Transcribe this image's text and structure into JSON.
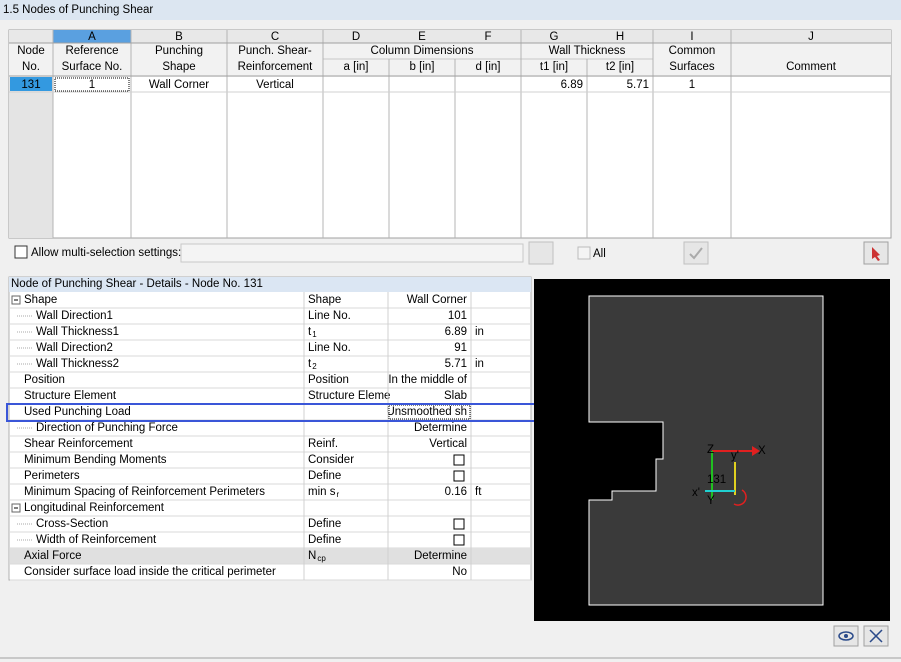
{
  "header": {
    "title": "1.5 Nodes of Punching Shear"
  },
  "table": {
    "columns": [
      {
        "label": [
          "Node",
          "No."
        ]
      },
      {
        "letter": "A",
        "label": [
          "Reference",
          "Surface No."
        ]
      },
      {
        "letter": "B",
        "label": [
          "Punching",
          "Shape"
        ]
      },
      {
        "letter": "C",
        "label": [
          "Punch. Shear-",
          "Reinforcement"
        ]
      },
      {
        "group": "Column Dimensions",
        "columns": [
          {
            "letter": "D",
            "label": "a [in]"
          },
          {
            "letter": "E",
            "label": "b [in]"
          },
          {
            "letter": "F",
            "label": "d [in]"
          }
        ]
      },
      {
        "group": "Wall Thickness",
        "columns": [
          {
            "letter": "G",
            "label": "t1 [in]"
          },
          {
            "letter": "H",
            "label": "t2 [in]"
          }
        ]
      },
      {
        "letter": "I",
        "label": [
          "Common",
          "Surfaces"
        ]
      },
      {
        "letter": "J",
        "label": [
          "Comment"
        ]
      }
    ],
    "rows": [
      [
        131,
        1,
        "Wall Corner",
        "Vertical",
        null,
        null,
        null,
        6.89,
        5.71,
        1,
        null
      ]
    ]
  },
  "toolbar": {
    "multi_selection": "Allow multi-selection settings:",
    "all": "All"
  },
  "details": {
    "title": "Node of Punching Shear - Details - Node No.  131",
    "rows": [
      {
        "label": "Shape",
        "param": "Shape",
        "value": "Wall Corner",
        "expanded": true,
        "children": [
          {
            "label": "Wall Direction1",
            "param": "Line No.",
            "value": 101
          },
          {
            "label": "Wall Thickness1",
            "param": "t",
            "param_sub": "1",
            "value": 6.89,
            "unit": "in"
          },
          {
            "label": "Wall Direction2",
            "param": "Line No.",
            "value": 91
          },
          {
            "label": "Wall Thickness2",
            "param": "t",
            "param_sub": "2",
            "value": 5.71,
            "unit": "in"
          }
        ]
      },
      {
        "label": "Position",
        "param": "Position",
        "value": "In the middle of"
      },
      {
        "label": "Structure Element",
        "param": "Structure Eleme",
        "value": "Slab"
      },
      {
        "label": "Used Punching Load",
        "value": "Unsmoothed sh",
        "children": [
          {
            "label": "Direction of Punching Force",
            "value": "Determine"
          }
        ]
      },
      {
        "label": "Shear Reinforcement",
        "param": "Reinf.",
        "value": "Vertical"
      },
      {
        "label": "Minimum Bending Moments",
        "param": "Consider",
        "value": false
      },
      {
        "label": "Perimeters",
        "param": "Define",
        "value": false
      },
      {
        "label": "Minimum Spacing of Reinforcement Perimeters",
        "param": "min s",
        "param_sub": "r",
        "value": 0.16,
        "unit": "ft"
      },
      {
        "label": "Longitudinal Reinforcement",
        "expanded": true,
        "children": [
          {
            "label": "Cross-Section",
            "param": "Define",
            "value": false
          },
          {
            "label": "Width of Reinforcement",
            "param": "Define",
            "value": false
          }
        ]
      },
      {
        "label": "Axial Force",
        "param": "N",
        "param_sub": "cp",
        "value": "Determine",
        "disabled": true
      },
      {
        "label": "Consider surface load inside the critical perimeter",
        "value": "No"
      }
    ]
  },
  "viewport": {
    "node_label": "131",
    "axes": [
      "Z",
      "y'",
      "X",
      "x'",
      "Y"
    ]
  }
}
